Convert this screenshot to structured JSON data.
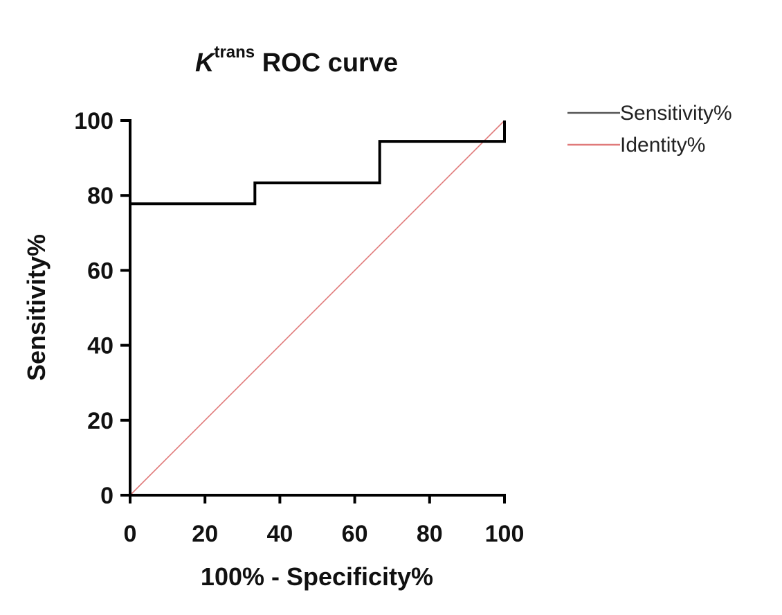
{
  "chart_data": {
    "type": "line",
    "title": {
      "italic": "K",
      "superscript": "trans",
      "rest": " ROC curve"
    },
    "xlabel": "100% - Specificity%",
    "ylabel": "Sensitivity%",
    "xlim": [
      0,
      100
    ],
    "ylim": [
      0,
      100
    ],
    "xticks": [
      0,
      20,
      40,
      60,
      80,
      100
    ],
    "yticks": [
      0,
      20,
      40,
      60,
      80,
      100
    ],
    "grid": false,
    "legend_position": "top-right-outside",
    "series": [
      {
        "name": "Sensitivity%",
        "color": "#000000",
        "legend_color": "#555555",
        "style": "step",
        "x": [
          0,
          0,
          33.33,
          33.33,
          66.67,
          66.67,
          100,
          100
        ],
        "y": [
          0,
          77.78,
          77.78,
          83.33,
          83.33,
          94.44,
          94.44,
          100
        ]
      },
      {
        "name": "Identity%",
        "color": "#e07a7a",
        "legend_color": "#e07a7a",
        "style": "line",
        "x": [
          0,
          100
        ],
        "y": [
          0,
          100
        ]
      }
    ]
  }
}
